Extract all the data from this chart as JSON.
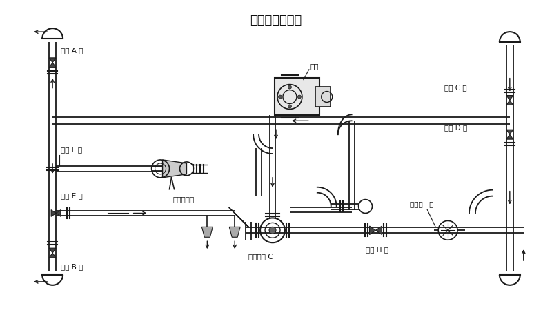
{
  "title": "洒水、浇灌花木",
  "title_fontsize": 13,
  "bg_color": "#ffffff",
  "line_color": "#1a1a1a",
  "text_color": "#111111",
  "labels": {
    "ball_A": "球阀 A 开",
    "ball_B": "球阀 B 开",
    "ball_C": "球阀 C 开",
    "ball_D": "球阀 D 开",
    "ball_E": "球阀 E 开",
    "ball_F": "球阀 F 关",
    "ball_G": "三通球阀 C",
    "ball_H": "球阀 H 关",
    "ball_I": "消防栓 I 关",
    "spray": "洒水炮出口",
    "pump": "水泵"
  }
}
